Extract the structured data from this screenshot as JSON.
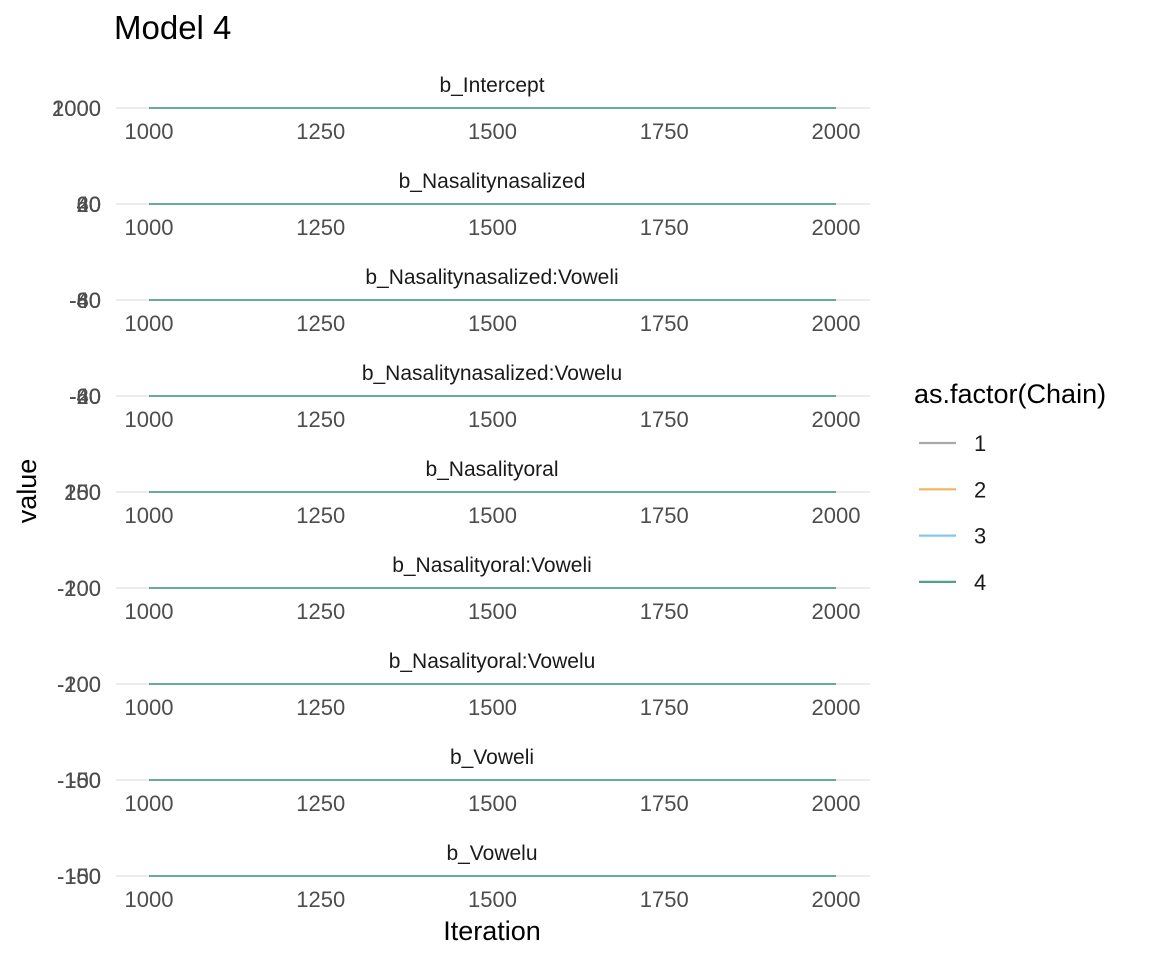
{
  "chart_data": {
    "type": "line",
    "title": "Model 4",
    "xlabel": "Iteration",
    "ylabel": "value",
    "x_ticks": [
      "1000",
      "1250",
      "1500",
      "1750",
      "2000"
    ],
    "xlim": [
      1000,
      2000
    ],
    "grid": "on",
    "legend": {
      "title": "as.factor(Chain)",
      "placement": "right",
      "entries": [
        {
          "label": "1",
          "color": "#aaaaaa"
        },
        {
          "label": "2",
          "color": "#f0b558"
        },
        {
          "label": "3",
          "color": "#86c7ee"
        },
        {
          "label": "4",
          "color": "#4ca58a"
        }
      ]
    },
    "panels": [
      {
        "name": "b_Intercept",
        "y_tick_labels": [
          "1000",
          "2000"
        ]
      },
      {
        "name": "b_Nasalitynasalized",
        "y_tick_labels": [
          "0",
          "20",
          "40",
          "60"
        ]
      },
      {
        "name": "b_Nasalitynasalized:Voweli",
        "y_tick_labels": [
          "-80",
          "-60",
          "-40"
        ]
      },
      {
        "name": "b_Nasalitynasalized:Vowelu",
        "y_tick_labels": [
          "-60",
          "-40",
          "-20",
          "0"
        ]
      },
      {
        "name": "b_Nasalityoral",
        "y_tick_labels": [
          "150",
          "200",
          "250"
        ]
      },
      {
        "name": "b_Nasalityoral:Voweli",
        "y_tick_labels": [
          "-200",
          "-100"
        ]
      },
      {
        "name": "b_Nasalityoral:Vowelu",
        "y_tick_labels": [
          "-200",
          "-100"
        ]
      },
      {
        "name": "b_Voweli",
        "y_tick_labels": [
          "-150",
          "-100",
          "-50"
        ]
      },
      {
        "name": "b_Vowelu",
        "y_tick_labels": [
          "-150",
          "-100",
          "-50"
        ]
      }
    ],
    "series": [
      {
        "name": "1",
        "color": "#aaaaaa"
      },
      {
        "name": "2",
        "color": "#f0b558"
      },
      {
        "name": "3",
        "color": "#86c7ee"
      },
      {
        "name": "4",
        "color": "#4ca58a"
      }
    ]
  }
}
